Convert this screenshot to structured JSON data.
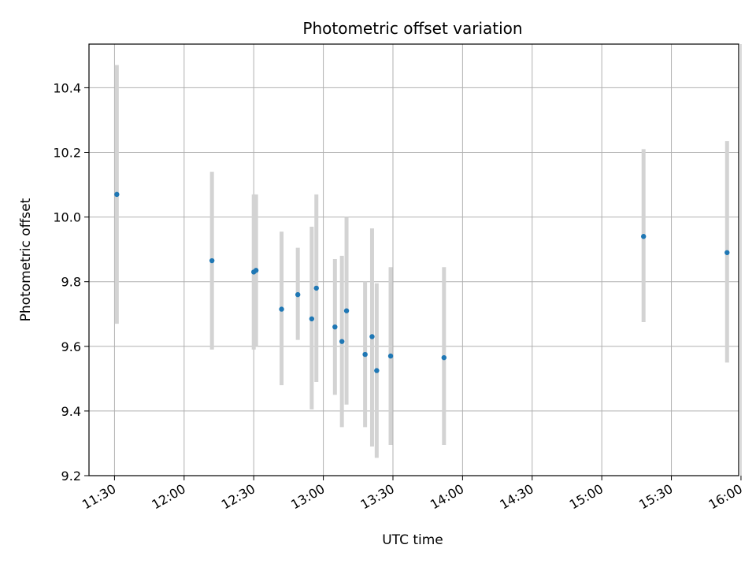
{
  "chart_data": {
    "type": "scatter",
    "title": "Photometric offset variation",
    "xlabel": "UTC time",
    "ylabel": "Photometric offset",
    "xlim": [
      "11:19",
      "15:59"
    ],
    "ylim": [
      9.2,
      10.535
    ],
    "grid": true,
    "x_ticks": [
      "11:30",
      "12:00",
      "12:30",
      "13:00",
      "13:30",
      "14:00",
      "14:30",
      "15:00",
      "15:30",
      "16:00"
    ],
    "y_ticks": [
      9.2,
      9.4,
      9.6,
      9.8,
      10.0,
      10.2,
      10.4
    ],
    "y_tick_labels": [
      "9.2",
      "9.4",
      "9.6",
      "9.8",
      "10.0",
      "10.2",
      "10.4"
    ],
    "marker_color": "#1f77b4",
    "errorbar_color": "#d3d3d3",
    "points": [
      {
        "x": "11:31",
        "y": 10.07,
        "ylow": 9.67,
        "yhigh": 10.47
      },
      {
        "x": "12:12",
        "y": 9.865,
        "ylow": 9.59,
        "yhigh": 10.14
      },
      {
        "x": "12:30",
        "y": 9.83,
        "ylow": 9.59,
        "yhigh": 10.07
      },
      {
        "x": "12:31",
        "y": 9.835,
        "ylow": 9.6,
        "yhigh": 10.07
      },
      {
        "x": "12:42",
        "y": 9.715,
        "ylow": 9.48,
        "yhigh": 9.955
      },
      {
        "x": "12:49",
        "y": 9.76,
        "ylow": 9.62,
        "yhigh": 9.905
      },
      {
        "x": "12:55",
        "y": 9.685,
        "ylow": 9.405,
        "yhigh": 9.97
      },
      {
        "x": "12:57",
        "y": 9.78,
        "ylow": 9.49,
        "yhigh": 10.07
      },
      {
        "x": "13:05",
        "y": 9.66,
        "ylow": 9.45,
        "yhigh": 9.87
      },
      {
        "x": "13:08",
        "y": 9.615,
        "ylow": 9.35,
        "yhigh": 9.88
      },
      {
        "x": "13:10",
        "y": 9.71,
        "ylow": 9.42,
        "yhigh": 10.0
      },
      {
        "x": "13:18",
        "y": 9.575,
        "ylow": 9.35,
        "yhigh": 9.8
      },
      {
        "x": "13:21",
        "y": 9.63,
        "ylow": 9.29,
        "yhigh": 9.965
      },
      {
        "x": "13:23",
        "y": 9.525,
        "ylow": 9.255,
        "yhigh": 9.795
      },
      {
        "x": "13:29",
        "y": 9.57,
        "ylow": 9.295,
        "yhigh": 9.845
      },
      {
        "x": "13:52",
        "y": 9.565,
        "ylow": 9.295,
        "yhigh": 9.845
      },
      {
        "x": "15:18",
        "y": 9.94,
        "ylow": 9.675,
        "yhigh": 10.21
      },
      {
        "x": "15:54",
        "y": 9.89,
        "ylow": 9.55,
        "yhigh": 10.235
      }
    ]
  }
}
